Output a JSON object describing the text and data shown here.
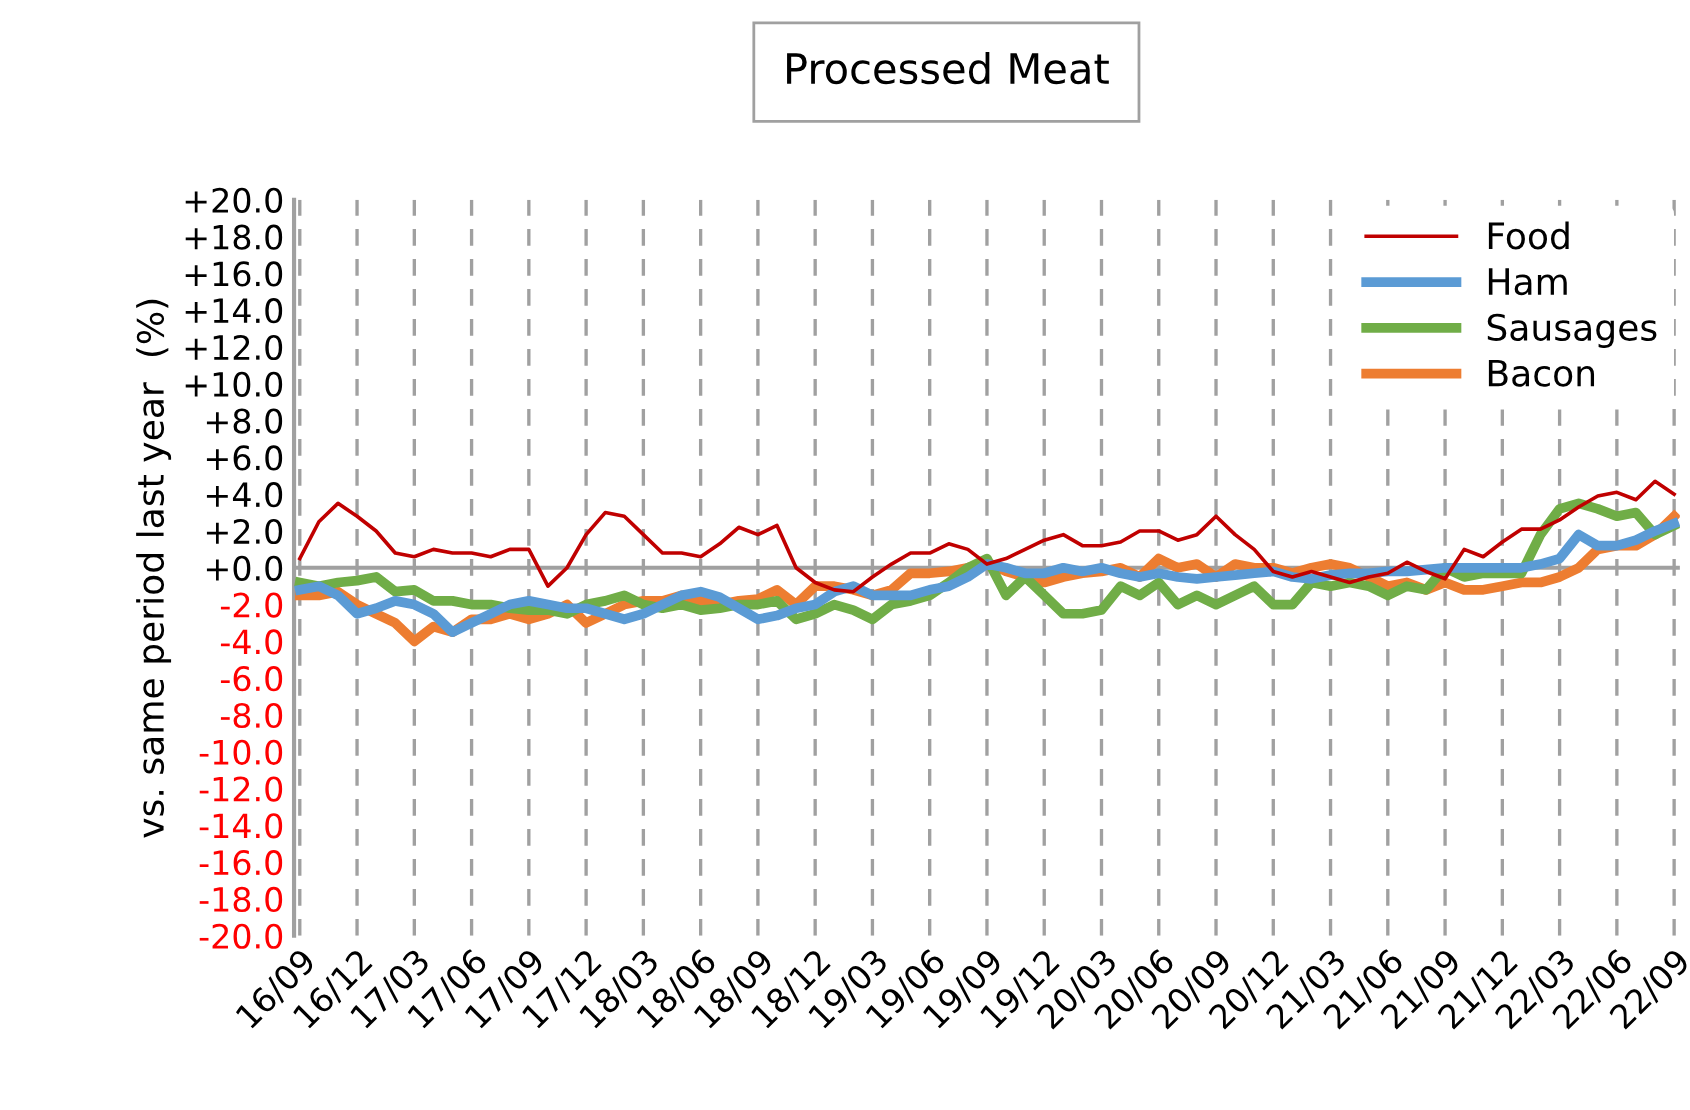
{
  "chart_data": {
    "type": "line",
    "title": "Processed Meat",
    "ylabel": "vs. same period last year  (%)",
    "categories": [
      "16/09",
      null,
      null,
      "16/12",
      null,
      null,
      "17/03",
      null,
      null,
      "17/06",
      null,
      null,
      "17/09",
      null,
      null,
      "17/12",
      null,
      null,
      "18/03",
      null,
      null,
      "18/06",
      null,
      null,
      "18/09",
      null,
      null,
      "18/12",
      null,
      null,
      "19/03",
      null,
      null,
      "19/06",
      null,
      null,
      "19/09",
      null,
      null,
      "19/12",
      null,
      null,
      "20/03",
      null,
      null,
      "20/06",
      null,
      null,
      "20/09",
      null,
      null,
      "20/12",
      null,
      null,
      "21/03",
      null,
      null,
      "21/06",
      null,
      null,
      "21/09",
      null,
      null,
      "21/12",
      null,
      null,
      "22/03",
      null,
      null,
      "22/06",
      null,
      null,
      "22/09"
    ],
    "series": [
      {
        "name": "Food",
        "color": "#c00000",
        "values": [
          0.5,
          2.5,
          3.5,
          2.8,
          2.0,
          0.8,
          0.6,
          1.0,
          0.8,
          0.8,
          0.6,
          1.0,
          1.0,
          -1.0,
          0.0,
          1.8,
          3.0,
          2.8,
          1.8,
          0.8,
          0.8,
          0.6,
          1.3,
          2.2,
          1.8,
          2.3,
          0.0,
          -0.8,
          -1.2,
          -1.3,
          -0.5,
          0.2,
          0.8,
          0.8,
          1.3,
          1.0,
          0.2,
          0.5,
          1.0,
          1.5,
          1.8,
          1.2,
          1.2,
          1.4,
          2.0,
          2.0,
          1.5,
          1.8,
          2.8,
          1.8,
          1.0,
          -0.2,
          -0.5,
          -0.2,
          -0.5,
          -0.8,
          -0.5,
          -0.3,
          0.3,
          -0.2,
          -0.6,
          1.0,
          0.6,
          1.4,
          2.1,
          2.1,
          2.6,
          3.3,
          3.9,
          4.1,
          3.7,
          4.7,
          4.0
        ]
      },
      {
        "name": "Ham",
        "color": "#5b9bd5",
        "values": [
          -1.2,
          -1.0,
          -1.5,
          -2.5,
          -2.2,
          -1.8,
          -2.0,
          -2.5,
          -3.5,
          -3.0,
          -2.5,
          -2.0,
          -1.8,
          -2.0,
          -2.2,
          -2.2,
          -2.5,
          -2.8,
          -2.5,
          -2.0,
          -1.5,
          -1.3,
          -1.6,
          -2.2,
          -2.8,
          -2.6,
          -2.2,
          -2.0,
          -1.3,
          -1.0,
          -1.5,
          -1.5,
          -1.5,
          -1.2,
          -1.0,
          -0.5,
          0.2,
          0.0,
          -0.3,
          -0.3,
          0.0,
          -0.2,
          0.0,
          -0.3,
          -0.5,
          -0.3,
          -0.5,
          -0.6,
          -0.5,
          -0.4,
          -0.3,
          -0.2,
          -0.5,
          -0.6,
          -0.4,
          -0.3,
          -0.3,
          -0.2,
          -0.2,
          -0.1,
          0.0,
          0.0,
          0.0,
          0.0,
          0.0,
          0.2,
          0.5,
          1.8,
          1.2,
          1.2,
          1.5,
          2.0,
          2.4
        ]
      },
      {
        "name": "Sausages",
        "color": "#70ad47",
        "values": [
          -0.8,
          -1.0,
          -0.8,
          -0.7,
          -0.5,
          -1.3,
          -1.2,
          -1.8,
          -1.8,
          -2.0,
          -2.0,
          -2.2,
          -2.3,
          -2.3,
          -2.5,
          -2.0,
          -1.8,
          -1.5,
          -2.0,
          -2.2,
          -2.0,
          -2.3,
          -2.2,
          -2.0,
          -2.0,
          -1.8,
          -2.8,
          -2.5,
          -2.0,
          -2.3,
          -2.8,
          -2.0,
          -1.8,
          -1.5,
          -0.8,
          0.0,
          0.5,
          -1.5,
          -0.5,
          -1.5,
          -2.5,
          -2.5,
          -2.3,
          -1.0,
          -1.5,
          -0.8,
          -2.0,
          -1.5,
          -2.0,
          -1.5,
          -1.0,
          -2.0,
          -2.0,
          -0.8,
          -1.0,
          -0.8,
          -1.0,
          -1.5,
          -1.0,
          -1.2,
          0.0,
          -0.5,
          -0.3,
          -0.3,
          -0.3,
          1.8,
          3.2,
          3.5,
          3.2,
          2.8,
          3.0,
          1.8,
          2.3
        ]
      },
      {
        "name": "Bacon",
        "color": "#ed7d31",
        "values": [
          -1.5,
          -1.5,
          -1.3,
          -2.0,
          -2.5,
          -3.0,
          -4.0,
          -3.2,
          -3.5,
          -2.8,
          -2.8,
          -2.5,
          -2.8,
          -2.5,
          -2.0,
          -3.0,
          -2.5,
          -2.0,
          -1.8,
          -1.8,
          -1.5,
          -1.8,
          -2.0,
          -1.8,
          -1.7,
          -1.2,
          -2.0,
          -1.0,
          -1.0,
          -1.2,
          -1.5,
          -1.2,
          -0.3,
          -0.3,
          -0.2,
          0.0,
          0.3,
          -0.2,
          -0.5,
          -0.8,
          -0.5,
          -0.3,
          -0.2,
          0.0,
          -0.5,
          0.5,
          0.0,
          0.2,
          -0.5,
          0.2,
          0.0,
          0.0,
          -0.3,
          0.0,
          0.2,
          0.0,
          -0.5,
          -1.0,
          -0.8,
          -1.2,
          -0.8,
          -1.2,
          -1.2,
          -1.0,
          -0.8,
          -0.8,
          -0.5,
          0.0,
          1.0,
          1.2,
          1.2,
          1.8,
          2.8
        ]
      }
    ],
    "ylim": [
      -20,
      20
    ],
    "yticks": [
      {
        "value": -20,
        "label": "-20.0"
      },
      {
        "value": -18,
        "label": "-18.0"
      },
      {
        "value": -16,
        "label": "-16.0"
      },
      {
        "value": -14,
        "label": "-14.0"
      },
      {
        "value": -12,
        "label": "-12.0"
      },
      {
        "value": -10,
        "label": "-10.0"
      },
      {
        "value": -8,
        "label": "-8.0"
      },
      {
        "value": -6,
        "label": "-6.0"
      },
      {
        "value": -4,
        "label": "-4.0"
      },
      {
        "value": -2,
        "label": "-2.0"
      },
      {
        "value": 0,
        "label": "+0.0"
      },
      {
        "value": 2,
        "label": "+2.0"
      },
      {
        "value": 4,
        "label": "+4.0"
      },
      {
        "value": 6,
        "label": "+6.0"
      },
      {
        "value": 8,
        "label": "+8.0"
      },
      {
        "value": 10,
        "label": "+10.0"
      },
      {
        "value": 12,
        "label": "+12.0"
      },
      {
        "value": 14,
        "label": "+14.0"
      },
      {
        "value": 16,
        "label": "+16.0"
      },
      {
        "value": 18,
        "label": "+18.0"
      },
      {
        "value": 20,
        "label": "+20.0"
      }
    ],
    "grid": "x",
    "legend": "top right",
    "marker": "none",
    "line_style": "solid"
  }
}
